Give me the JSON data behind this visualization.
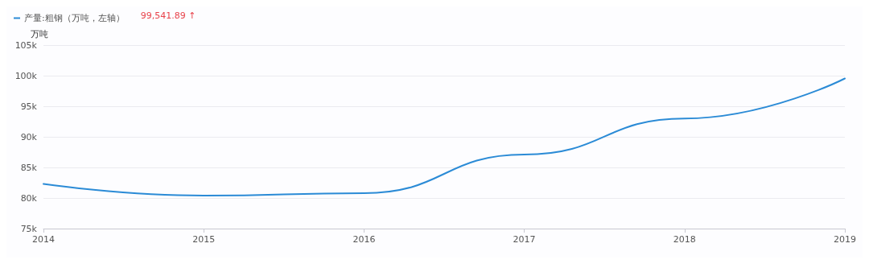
{
  "chart_data": {
    "type": "line",
    "ylabel": "万吨",
    "x": [
      2014,
      2015,
      2016,
      2017,
      2018,
      2019
    ],
    "series": [
      {
        "name": "产量:粗钢（万吨，左轴）",
        "color": "#2b8bd6",
        "values": [
          82300,
          80400,
          80800,
          87100,
          93000,
          99541.89
        ]
      }
    ],
    "xlim": [
      2014,
      2019
    ],
    "xticks": [
      2014,
      2015,
      2016,
      2017,
      2018,
      2019
    ],
    "ylim": [
      75000,
      105000
    ],
    "yticks": [
      {
        "value": 75000,
        "label": "75k"
      },
      {
        "value": 80000,
        "label": "80k"
      },
      {
        "value": 85000,
        "label": "85k"
      },
      {
        "value": 90000,
        "label": "90k"
      },
      {
        "value": 95000,
        "label": "95k"
      },
      {
        "value": 100000,
        "label": "100k"
      },
      {
        "value": 105000,
        "label": "105k"
      }
    ],
    "annotations": [
      "99,541.89 ↑"
    ],
    "grid": "y",
    "legend": "top left",
    "marker": "none",
    "line_style": "solid"
  }
}
